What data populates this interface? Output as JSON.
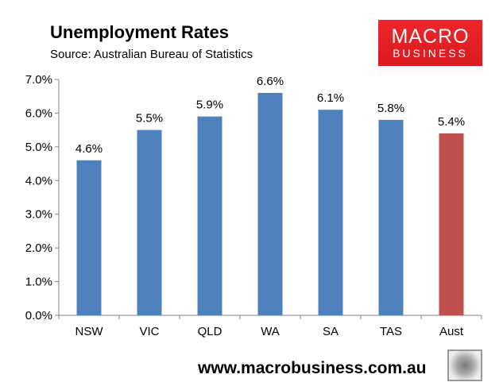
{
  "header": {
    "title": "Unemployment Rates",
    "subtitle": "Source: Australian Bureau of Statistics",
    "logo_line1": "MACRO",
    "logo_line2": "BUSINESS"
  },
  "footer": {
    "url": "www.macrobusiness.com.au"
  },
  "colors": {
    "bar": "#4f81bd",
    "highlight": "#c0504d",
    "brand": "#e8202a"
  },
  "chart_data": {
    "type": "bar",
    "title": "Unemployment Rates",
    "subtitle": "Source: Australian Bureau of Statistics",
    "categories": [
      "NSW",
      "VIC",
      "QLD",
      "WA",
      "SA",
      "TAS",
      "Aust"
    ],
    "values": [
      4.6,
      5.5,
      5.9,
      6.6,
      6.1,
      5.8,
      5.4
    ],
    "data_labels": [
      "4.6%",
      "5.5%",
      "5.9%",
      "6.6%",
      "6.1%",
      "5.8%",
      "5.4%"
    ],
    "highlight_category": "Aust",
    "ylim": [
      0,
      7
    ],
    "yticks": [
      "0.0%",
      "1.0%",
      "2.0%",
      "3.0%",
      "4.0%",
      "5.0%",
      "6.0%",
      "7.0%"
    ],
    "xlabel": "",
    "ylabel": "",
    "grid": false,
    "legend": "none"
  }
}
